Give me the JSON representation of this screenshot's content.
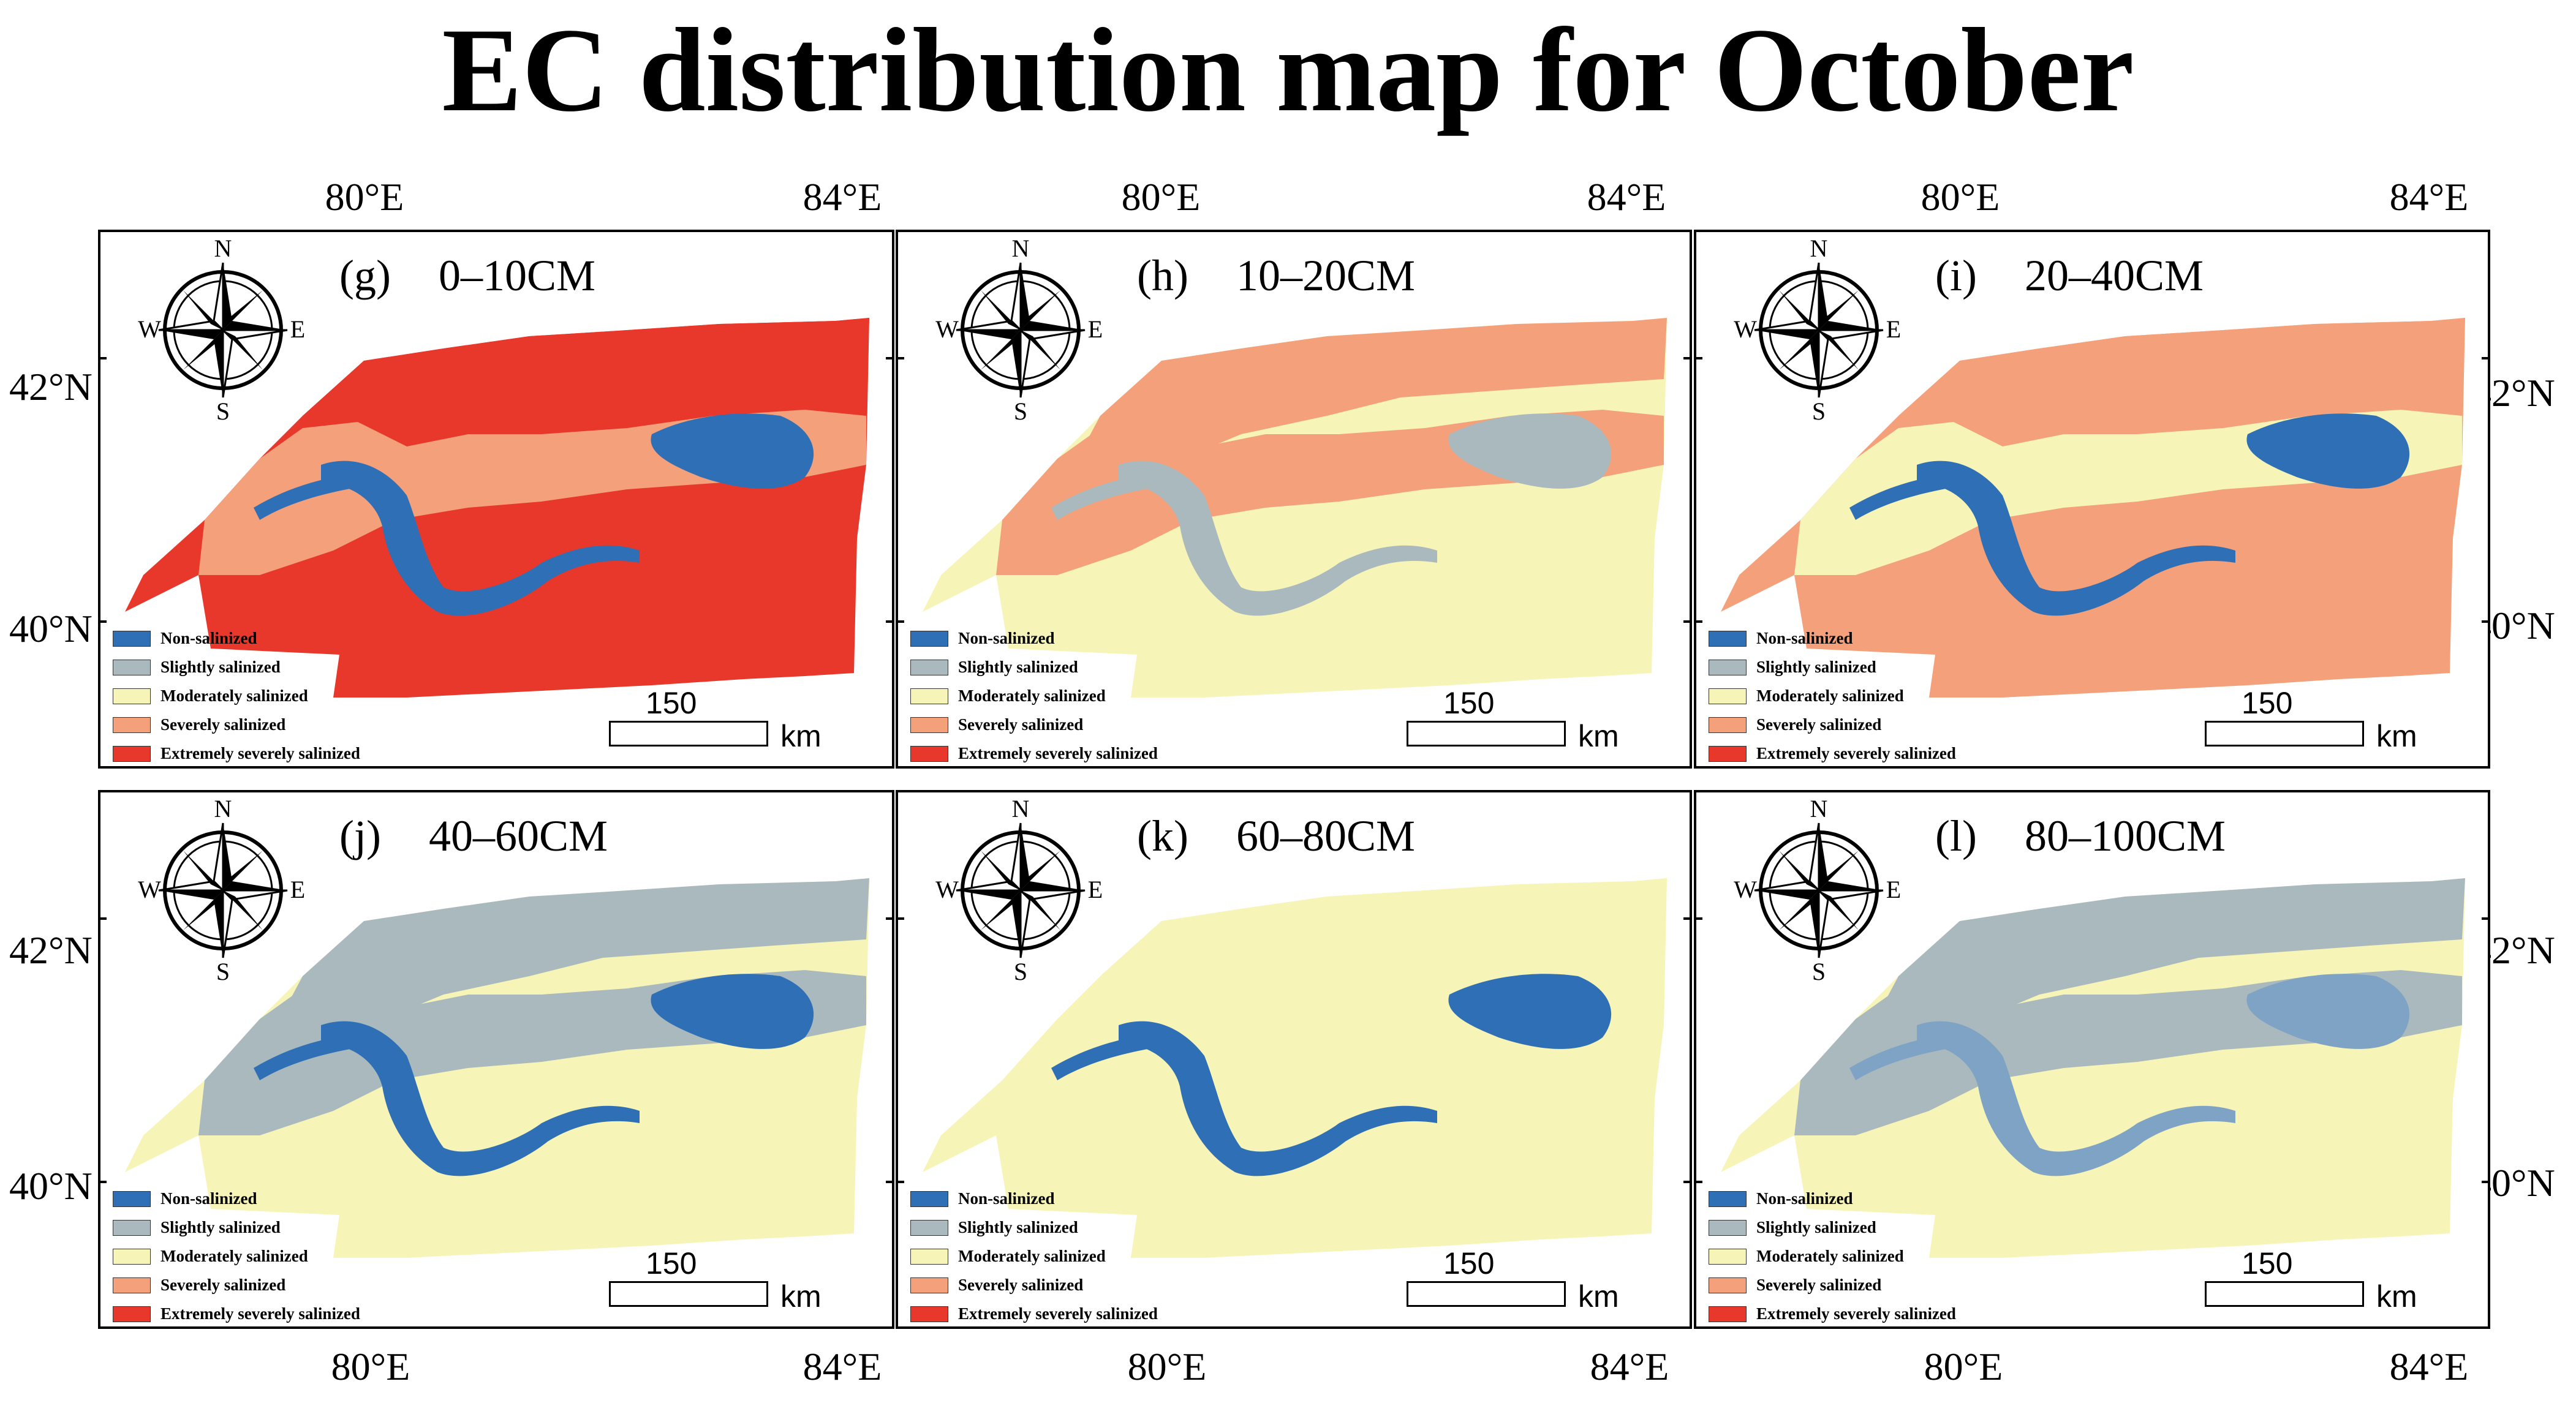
{
  "title": "EC distribution map for October",
  "axes": {
    "lon_left": "80°E",
    "lon_right": "84°E",
    "lat_top": "42°N",
    "lat_bottom": "40°N"
  },
  "legend": {
    "items": [
      {
        "label": "Non-salinized",
        "color": "#2e6fb5"
      },
      {
        "label": "Slightly salinized",
        "color": "#a9b9bd"
      },
      {
        "label": "Moderately salinized",
        "color": "#f7f4b7"
      },
      {
        "label": "Severely salinized",
        "color": "#f4a07a"
      },
      {
        "label": "Extremely severely salinized",
        "color": "#e8382b"
      }
    ]
  },
  "compass": {
    "n": "N",
    "s": "S",
    "e": "E",
    "w": "W"
  },
  "scale": {
    "value": "150",
    "unit": "km"
  },
  "panels": [
    {
      "letter": "(g)",
      "depth": "0–10CM",
      "base": "#e8382b",
      "mid": "#f4a07a",
      "channel": "#2e6fb5",
      "upper": "#e8382b"
    },
    {
      "letter": "(h)",
      "depth": "10–20CM",
      "base": "#f7f4b7",
      "mid": "#f4a07a",
      "channel": "#a9b9bd",
      "upper": "#f4a07a"
    },
    {
      "letter": "(i)",
      "depth": "20–40CM",
      "base": "#f4a07a",
      "mid": "#f7f4b7",
      "channel": "#2e6fb5",
      "upper": "#f4a07a"
    },
    {
      "letter": "(j)",
      "depth": "40–60CM",
      "base": "#f7f4b7",
      "mid": "#a9b9bd",
      "channel": "#2e6fb5",
      "upper": "#a9b9bd"
    },
    {
      "letter": "(k)",
      "depth": "60–80CM",
      "base": "#f7f4b7",
      "mid": "#f7f4b7",
      "channel": "#2e6fb5",
      "upper": "#f7f4b7"
    },
    {
      "letter": "(l)",
      "depth": "80–100CM",
      "base": "#f7f4b7",
      "mid": "#a9b9bd",
      "channel": "#7fa3c4",
      "upper": "#a9b9bd"
    }
  ]
}
